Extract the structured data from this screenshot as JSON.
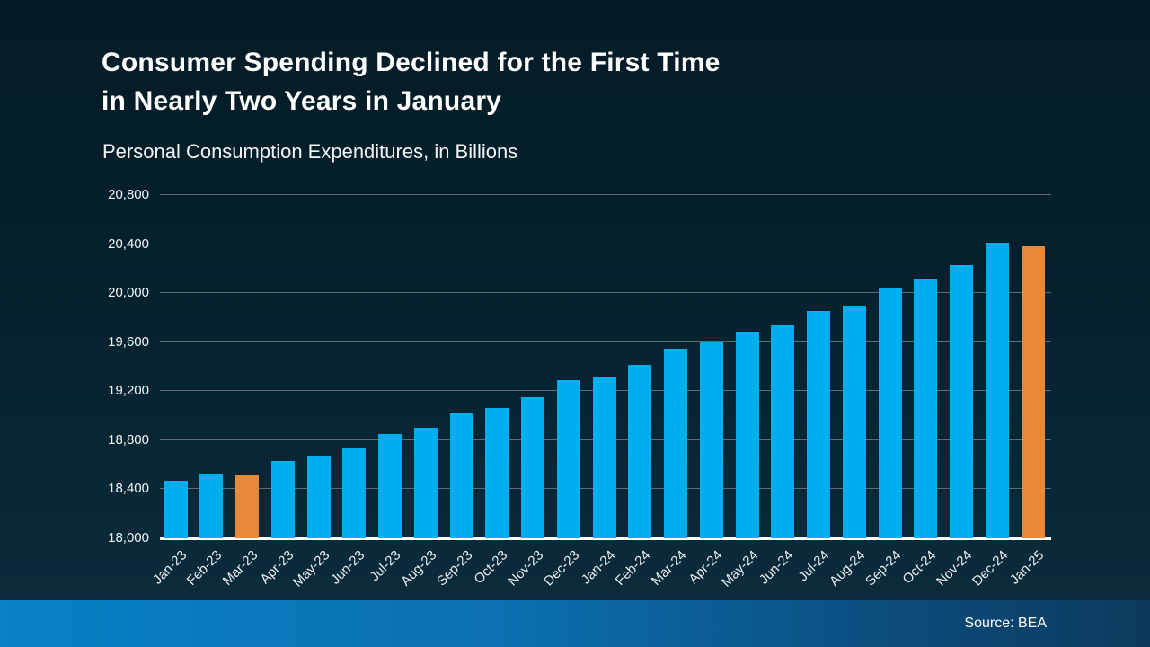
{
  "slide": {
    "title_line1": "Consumer Spending Declined for the First Time",
    "title_line2": "in Nearly Two Years in January",
    "subtitle": "Personal Consumption Expenditures, in Billions",
    "source": "Source: BEA"
  },
  "colors": {
    "bar_default": "#00adee",
    "bar_highlight": "#e98937",
    "gridline": "#5e6b74",
    "axis_line": "#ffffff",
    "background_top": "#041c26",
    "background_bottom": "#0a2c3c",
    "footer_left": "#0881c6",
    "footer_right": "#0c3a5c",
    "text": "#ffffff"
  },
  "chart_data": {
    "type": "bar",
    "title": "Consumer Spending Declined for the First Time in Nearly Two Years in January",
    "subtitle": "Personal Consumption Expenditures, in Billions",
    "xlabel": "",
    "ylabel": "Personal Consumption Expenditures, in Billions",
    "ylim": [
      18000,
      20800
    ],
    "ytick_step": 400,
    "yticks": [
      18000,
      18400,
      18800,
      19200,
      19600,
      20000,
      20400,
      20800
    ],
    "grid": true,
    "legend": false,
    "categories": [
      "Jan-23",
      "Feb-23",
      "Mar-23",
      "Apr-23",
      "May-23",
      "Jun-23",
      "Jul-23",
      "Aug-23",
      "Sep-23",
      "Oct-23",
      "Nov-23",
      "Dec-23",
      "Jan-24",
      "Feb-24",
      "Mar-24",
      "Apr-24",
      "May-24",
      "Jun-24",
      "Jul-24",
      "Aug-24",
      "Sep-24",
      "Oct-24",
      "Nov-24",
      "Dec-24",
      "Jan-25"
    ],
    "values": [
      18470,
      18525,
      18510,
      18630,
      18670,
      18740,
      18850,
      18900,
      19020,
      19065,
      19150,
      19290,
      19310,
      19415,
      19545,
      19600,
      19685,
      19740,
      19855,
      19895,
      20035,
      20120,
      20225,
      20410,
      20380
    ],
    "highlighted_categories": [
      "Mar-23",
      "Jan-25"
    ]
  }
}
